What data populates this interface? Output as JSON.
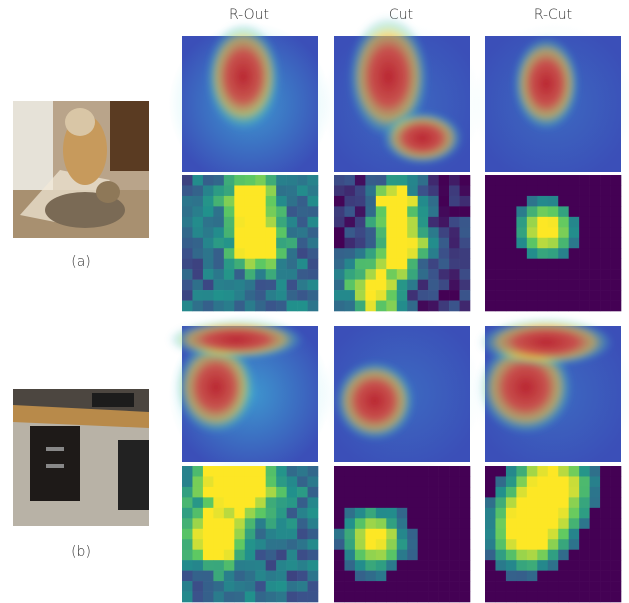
{
  "columns": [
    "R-Out",
    "Cut",
    "R-Cut"
  ],
  "examples": [
    {
      "label": "(a)"
    },
    {
      "label": "(b)"
    }
  ]
}
